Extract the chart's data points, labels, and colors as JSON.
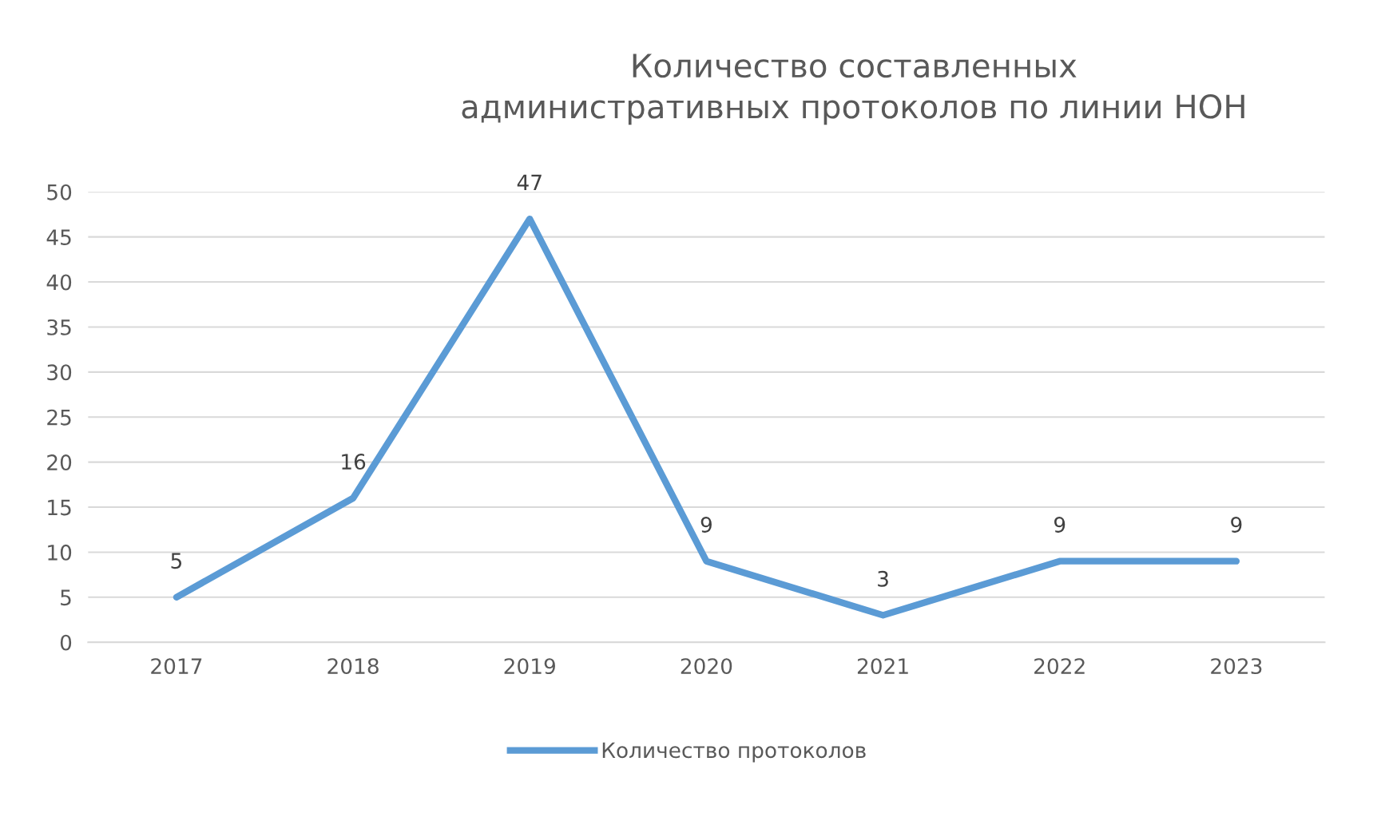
{
  "chart_data": {
    "type": "line",
    "title": "Количество составленных\nадминистративных протоколов по линии НОН",
    "categories": [
      "2017",
      "2018",
      "2019",
      "2020",
      "2021",
      "2022",
      "2023"
    ],
    "series": [
      {
        "name": "Количество протоколов",
        "color": "#5b9bd5",
        "values": [
          5,
          16,
          47,
          9,
          3,
          9,
          9
        ]
      }
    ],
    "ylim": [
      0,
      50
    ],
    "yticks": [
      0,
      5,
      10,
      15,
      20,
      25,
      30,
      35,
      40,
      45,
      50
    ],
    "grid": "y",
    "legend": "bottom",
    "data_labels": true,
    "marker": "none",
    "line_style": "solid"
  }
}
